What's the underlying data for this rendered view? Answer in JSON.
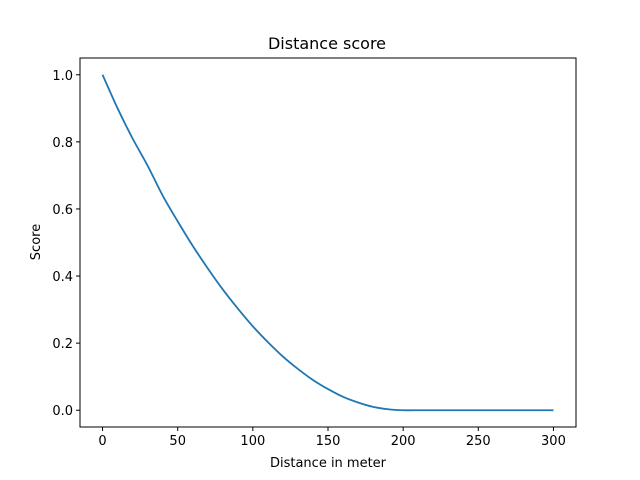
{
  "chart_data": {
    "type": "line",
    "title": "Distance score",
    "xlabel": "Distance in meter",
    "ylabel": "Score",
    "xlim": [
      -15,
      315
    ],
    "ylim": [
      -0.05,
      1.05
    ],
    "xticks": [
      0,
      50,
      100,
      150,
      200,
      250,
      300
    ],
    "yticks": [
      0.0,
      0.2,
      0.4,
      0.6,
      0.8,
      1.0
    ],
    "ytick_labels": [
      "0.0",
      "0.2",
      "0.4",
      "0.6",
      "0.8",
      "1.0"
    ],
    "grid": false,
    "series": [
      {
        "color": "#1f77b4",
        "x": [
          0,
          10,
          20,
          30,
          40,
          50,
          60,
          70,
          80,
          90,
          100,
          110,
          120,
          130,
          140,
          150,
          160,
          170,
          180,
          190,
          200,
          210,
          220,
          230,
          240,
          250,
          260,
          270,
          280,
          290,
          300
        ],
        "y": [
          1.0,
          0.9,
          0.81,
          0.729,
          0.64,
          0.563,
          0.49,
          0.423,
          0.36,
          0.303,
          0.25,
          0.203,
          0.16,
          0.123,
          0.09,
          0.063,
          0.04,
          0.023,
          0.01,
          0.003,
          0.0,
          0.0,
          0.0,
          0.0,
          0.0,
          0.0,
          0.0,
          0.0,
          0.0,
          0.0,
          0.0
        ]
      }
    ]
  }
}
